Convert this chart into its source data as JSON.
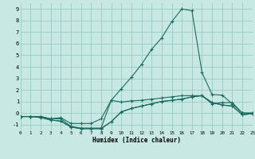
{
  "xlabel": "Humidex (Indice chaleur)",
  "bg_color": "#c8e8e4",
  "grid_color": "#8fc4be",
  "line_color": "#1a6b5e",
  "xlim": [
    0,
    23
  ],
  "ylim": [
    -1.5,
    9.5
  ],
  "xticks": [
    0,
    1,
    2,
    3,
    4,
    5,
    6,
    7,
    8,
    9,
    10,
    11,
    12,
    13,
    14,
    15,
    16,
    17,
    18,
    19,
    20,
    21,
    22,
    23
  ],
  "yticks": [
    -1,
    0,
    1,
    2,
    3,
    4,
    5,
    6,
    7,
    8,
    9
  ],
  "curves": [
    {
      "x": [
        0,
        1,
        2,
        3,
        4,
        5,
        6,
        7,
        8,
        9,
        10,
        11,
        12,
        13,
        14,
        15,
        16,
        17,
        18,
        19,
        20,
        21,
        22,
        23
      ],
      "y": [
        -0.3,
        -0.3,
        -0.3,
        -0.5,
        -0.4,
        -0.9,
        -0.9,
        -0.9,
        -0.5,
        1.1,
        2.1,
        3.1,
        4.2,
        5.5,
        6.5,
        7.9,
        9.0,
        8.85,
        3.5,
        1.6,
        1.55,
        0.8,
        0.0,
        0.0
      ]
    },
    {
      "x": [
        0,
        1,
        2,
        3,
        4,
        5,
        6,
        7,
        8,
        9,
        10,
        11,
        12,
        13,
        14,
        15,
        16,
        17,
        18,
        19,
        20,
        21,
        22,
        23
      ],
      "y": [
        -0.3,
        -0.3,
        -0.3,
        -0.5,
        -0.5,
        -1.15,
        -1.3,
        -1.3,
        -1.3,
        1.1,
        0.95,
        1.05,
        1.1,
        1.2,
        1.3,
        1.4,
        1.5,
        1.5,
        1.5,
        0.8,
        0.9,
        0.9,
        0.0,
        0.0
      ]
    },
    {
      "x": [
        0,
        1,
        2,
        3,
        4,
        5,
        6,
        7,
        8,
        9,
        10,
        11,
        12,
        13,
        14,
        15,
        16,
        17,
        18,
        19,
        20,
        21,
        22,
        23
      ],
      "y": [
        -0.3,
        -0.3,
        -0.35,
        -0.6,
        -0.7,
        -1.2,
        -1.35,
        -1.35,
        -1.35,
        -0.75,
        0.1,
        0.4,
        0.6,
        0.8,
        1.0,
        1.1,
        1.2,
        1.4,
        1.5,
        0.9,
        0.7,
        0.6,
        -0.15,
        -0.05
      ]
    },
    {
      "x": [
        0,
        1,
        2,
        3,
        4,
        5,
        6,
        7,
        8,
        9,
        10,
        11,
        12,
        13,
        14,
        15,
        16,
        17,
        18,
        19,
        20,
        21,
        22,
        23
      ],
      "y": [
        -0.3,
        -0.3,
        -0.4,
        -0.6,
        -0.7,
        -1.2,
        -1.35,
        -1.35,
        -1.35,
        -0.75,
        0.1,
        0.4,
        0.6,
        0.8,
        1.0,
        1.1,
        1.2,
        1.4,
        1.5,
        0.9,
        0.7,
        0.6,
        -0.15,
        -0.05
      ]
    }
  ]
}
